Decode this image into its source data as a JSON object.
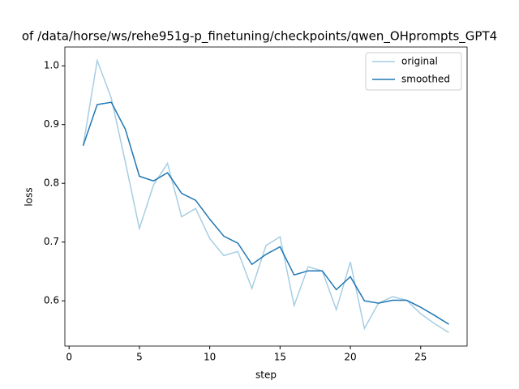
{
  "chart_data": {
    "type": "line",
    "title": "of /data/horse/ws/rehe951g-p_finetuning/checkpoints/qwen_OHprompts_GPT4",
    "x_label": "step",
    "y_label": "loss",
    "x": [
      1,
      2,
      3,
      4,
      5,
      6,
      7,
      8,
      9,
      10,
      11,
      12,
      13,
      14,
      15,
      16,
      17,
      18,
      19,
      20,
      21,
      22,
      23,
      24,
      25,
      26,
      27
    ],
    "series": [
      {
        "name": "original",
        "color": "#a6cee3",
        "values": [
          0.864,
          1.009,
          0.945,
          0.836,
          0.723,
          0.797,
          0.834,
          0.743,
          0.757,
          0.706,
          0.677,
          0.684,
          0.621,
          0.694,
          0.709,
          0.592,
          0.658,
          0.651,
          0.585,
          0.666,
          0.553,
          0.596,
          0.607,
          0.601,
          0.578,
          0.561,
          0.546
        ]
      },
      {
        "name": "smoothed",
        "color": "#1f77b4",
        "values": [
          0.864,
          0.934,
          0.938,
          0.892,
          0.812,
          0.804,
          0.818,
          0.783,
          0.771,
          0.739,
          0.71,
          0.698,
          0.662,
          0.679,
          0.692,
          0.644,
          0.651,
          0.651,
          0.619,
          0.641,
          0.6,
          0.596,
          0.601,
          0.601,
          0.589,
          0.575,
          0.56
        ]
      }
    ],
    "xlim": [
      -0.3,
      28.3
    ],
    "xticks": [
      0,
      5,
      10,
      15,
      20,
      25
    ],
    "ylim": [
      0.523,
      1.032
    ],
    "yticks": [
      0.6,
      0.7,
      0.8,
      0.9,
      {
        "value": 1.0,
        "label": "1.0"
      }
    ],
    "legend": "upper right"
  }
}
